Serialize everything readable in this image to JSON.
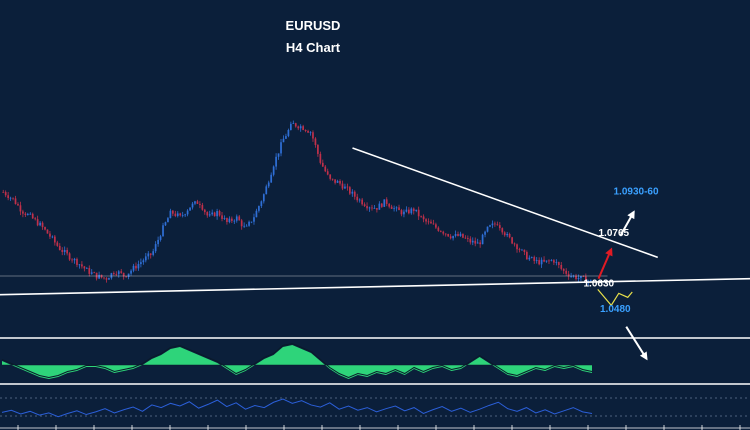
{
  "chart_data": {
    "type": "candlestick",
    "title": "EURUSD",
    "subtitle": "H4 Chart",
    "colors": {
      "background": "#0b1f3a",
      "candle_up": "#2f6fd6",
      "candle_down": "#c0304a",
      "trendline": "#ffffff",
      "bullish_arrow": "#e01b24",
      "target_arrow": "#ffffff",
      "bearish_path": "#e8e04a",
      "target_label": "#3aa0ff",
      "level_label": "#ffffff",
      "oscillator_fill": "#2ed47a",
      "rsi_line": "#2b5fd9"
    },
    "price_levels": [
      {
        "key": "target_high",
        "label": "1.0930-60",
        "value": 1.0945,
        "color": "#3aa0ff"
      },
      {
        "key": "resistance",
        "label": "1.0765",
        "value": 1.0765,
        "color": "#ffffff"
      },
      {
        "key": "support",
        "label": "1.0630",
        "value": 1.063,
        "color": "#ffffff"
      },
      {
        "key": "target_low",
        "label": "1.0480",
        "value": 1.048,
        "color": "#3aa0ff"
      }
    ],
    "price_path": [
      1.0955,
      1.093,
      1.0885,
      1.086,
      1.083,
      1.079,
      1.0745,
      1.0715,
      1.069,
      1.066,
      1.064,
      1.063,
      1.066,
      1.064,
      1.067,
      1.07,
      1.0725,
      1.081,
      1.088,
      1.086,
      1.09,
      1.092,
      1.086,
      1.088,
      1.084,
      1.086,
      1.0815,
      1.087,
      1.095,
      1.106,
      1.115,
      1.121,
      1.12,
      1.118,
      1.107,
      1.1,
      1.099,
      1.096,
      1.093,
      1.0905,
      1.0895,
      1.092,
      1.089,
      1.0875,
      1.089,
      1.085,
      1.083,
      1.081,
      1.079,
      1.079,
      1.077,
      1.076,
      1.082,
      1.084,
      1.079,
      1.0755,
      1.0715,
      1.0695,
      1.069,
      1.07,
      1.066,
      1.064,
      1.063,
      1.062
    ],
    "trend_lines": [
      {
        "name": "descending-resistance",
        "from": [
          0.47,
          1.112
        ],
        "to": [
          0.877,
          1.071
        ]
      },
      {
        "name": "ascending-support",
        "from": [
          0.0,
          1.057
        ],
        "to": [
          1.0,
          1.063
        ]
      },
      {
        "name": "support-horizontal",
        "from": [
          0.0,
          1.064
        ],
        "to": [
          0.81,
          1.064
        ]
      }
    ],
    "projections": [
      {
        "name": "bullish-breakout",
        "type": "arrow",
        "points": [
          [
            0.798,
            1.063
          ],
          [
            0.815,
            1.074
          ]
        ]
      },
      {
        "name": "target-high-arrow",
        "type": "arrow",
        "points": [
          [
            0.827,
            1.079
          ],
          [
            0.845,
            1.088
          ]
        ]
      },
      {
        "name": "bearish-zigzag",
        "type": "zigzag",
        "points": [
          [
            0.797,
            1.059
          ],
          [
            0.815,
            1.053
          ],
          [
            0.825,
            1.0575
          ],
          [
            0.837,
            1.056
          ],
          [
            0.843,
            1.058
          ]
        ]
      },
      {
        "name": "target-low-arrow",
        "type": "arrow",
        "points": [
          [
            0.835,
            1.045
          ],
          [
            0.862,
            1.033
          ]
        ]
      }
    ],
    "oscillator": {
      "name": "momentum-histogram",
      "values": [
        0.2,
        0.0,
        -0.2,
        -0.4,
        -0.6,
        -0.7,
        -0.6,
        -0.4,
        -0.3,
        -0.1,
        -0.1,
        -0.2,
        -0.4,
        -0.3,
        -0.2,
        0.0,
        0.3,
        0.5,
        0.8,
        0.9,
        0.7,
        0.5,
        0.3,
        0.1,
        -0.2,
        -0.5,
        -0.3,
        0.0,
        0.3,
        0.5,
        0.9,
        1.0,
        0.8,
        0.6,
        0.2,
        -0.2,
        -0.5,
        -0.7,
        -0.5,
        -0.6,
        -0.4,
        -0.5,
        -0.3,
        -0.5,
        -0.2,
        -0.4,
        -0.2,
        -0.1,
        -0.3,
        -0.2,
        0.1,
        0.4,
        0.1,
        -0.2,
        -0.5,
        -0.6,
        -0.4,
        -0.2,
        -0.3,
        -0.1,
        -0.2,
        -0.1,
        -0.3,
        -0.4
      ]
    },
    "rsi": {
      "name": "rsi-line",
      "values": [
        38,
        42,
        35,
        40,
        33,
        37,
        30,
        36,
        41,
        34,
        39,
        45,
        37,
        43,
        48,
        40,
        52,
        47,
        55,
        50,
        58,
        46,
        53,
        61,
        49,
        56,
        44,
        51,
        47,
        57,
        63,
        55,
        60,
        52,
        48,
        56,
        44,
        50,
        42,
        47,
        39,
        45,
        50,
        41,
        47,
        36,
        43,
        49,
        40,
        46,
        38,
        44,
        51,
        57,
        45,
        40,
        47,
        37,
        43,
        35,
        41,
        47,
        39,
        36
      ]
    },
    "axis": {
      "ymin": 1.04,
      "ymax": 1.13
    },
    "legend": "none",
    "grid": false
  }
}
